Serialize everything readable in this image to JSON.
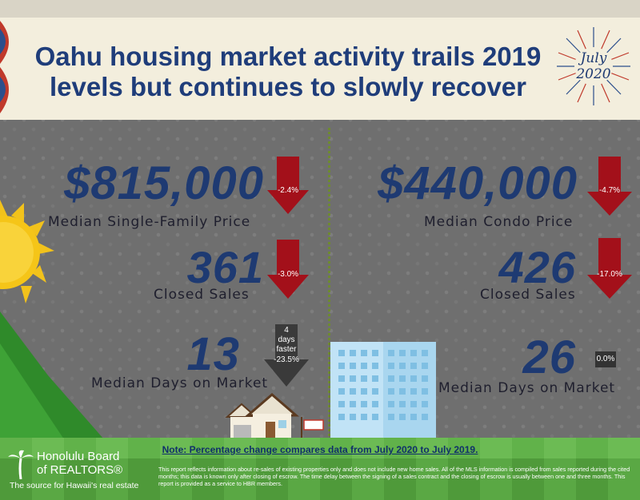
{
  "title": "Oahu housing market activity trails 2019 levels but continues to slowly recover",
  "stamp": {
    "line1": "July",
    "line2": "2020"
  },
  "left": {
    "median_price": {
      "value": "$815,000",
      "label": "Median Single-Family Price",
      "change": "-2.4%"
    },
    "closed_sales": {
      "value": "361",
      "label": "Closed Sales",
      "change": "-3.0%"
    },
    "days_on_market": {
      "value": "13",
      "label": "Median Days on Market",
      "change": "-23.5%",
      "note_line1": "4",
      "note_line2": "days",
      "note_line3": "faster"
    }
  },
  "right": {
    "median_price": {
      "value": "$440,000",
      "label": "Median Condo Price",
      "change": "-4.7%"
    },
    "closed_sales": {
      "value": "426",
      "label": "Closed Sales",
      "change": "-17.0%"
    },
    "days_on_market": {
      "value": "26",
      "label": "Median Days on Market",
      "change": "0.0%"
    }
  },
  "note": "Note: Percentage change compares data from July 2020 to July 2019.",
  "disclaimer": "This report reflects information about re-sales of existing properties only and does not include new home sales. All of the MLS information is compiled from sales reported during the cited months; this data is known only after closing of escrow. The time delay between the signing of a sales contract and the closing of escrow is usually between one and three months. This report is provided as a service to HBR members.",
  "logo": {
    "line1": "Honolulu Board",
    "line2": "of REALTORS®",
    "tagline": "The source for Hawaii's real estate"
  },
  "colors": {
    "headline": "#1e3a72",
    "arrow_down": "#a3101a",
    "arrow_neutral": "#3a3a3a",
    "banner": "#f3eedd",
    "grass": "#5aa844"
  }
}
